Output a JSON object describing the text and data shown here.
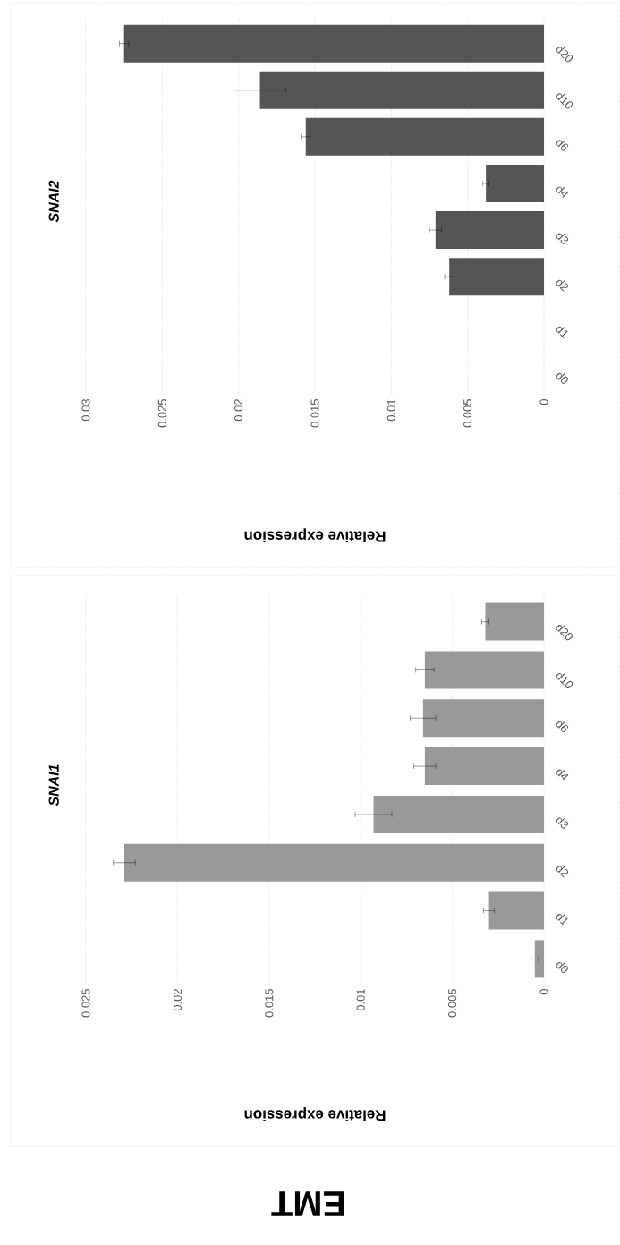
{
  "chart_data": [
    {
      "type": "bar",
      "orientation": "horizontal",
      "title": "SNAI2",
      "xlabel": "Relative expression",
      "categories": [
        "d20",
        "d10",
        "d6",
        "d4",
        "d3",
        "d2",
        "d1",
        "d0"
      ],
      "values": [
        0.0275,
        0.0186,
        0.0156,
        0.0038,
        0.0071,
        0.0062,
        0,
        0
      ],
      "errors": [
        0.0003,
        0.0017,
        0.0003,
        0.0002,
        0.0004,
        0.0003,
        null,
        null
      ],
      "color": "#555555",
      "xlim": [
        0.03,
        0
      ],
      "xticks": [
        0.03,
        0.025,
        0.02,
        0.015,
        0.01,
        0.005,
        0
      ],
      "grid": "x"
    },
    {
      "type": "bar",
      "orientation": "horizontal",
      "title": "SNAI1",
      "xlabel": "Relative expression",
      "categories": [
        "d20",
        "d10",
        "d6",
        "d4",
        "d3",
        "d2",
        "d1",
        "d0"
      ],
      "values": [
        0.0032,
        0.0065,
        0.0066,
        0.0065,
        0.0093,
        0.0229,
        0.003,
        0.0005
      ],
      "errors": [
        0.0002,
        0.0005,
        0.0007,
        0.0006,
        0.001,
        0.0006,
        0.0003,
        0.0002
      ],
      "color": "#999999",
      "xlim": [
        0.025,
        0
      ],
      "xticks": [
        0.025,
        0.02,
        0.015,
        0.01,
        0.005,
        0
      ],
      "grid": "x",
      "annotations": [
        "EMT"
      ]
    }
  ]
}
